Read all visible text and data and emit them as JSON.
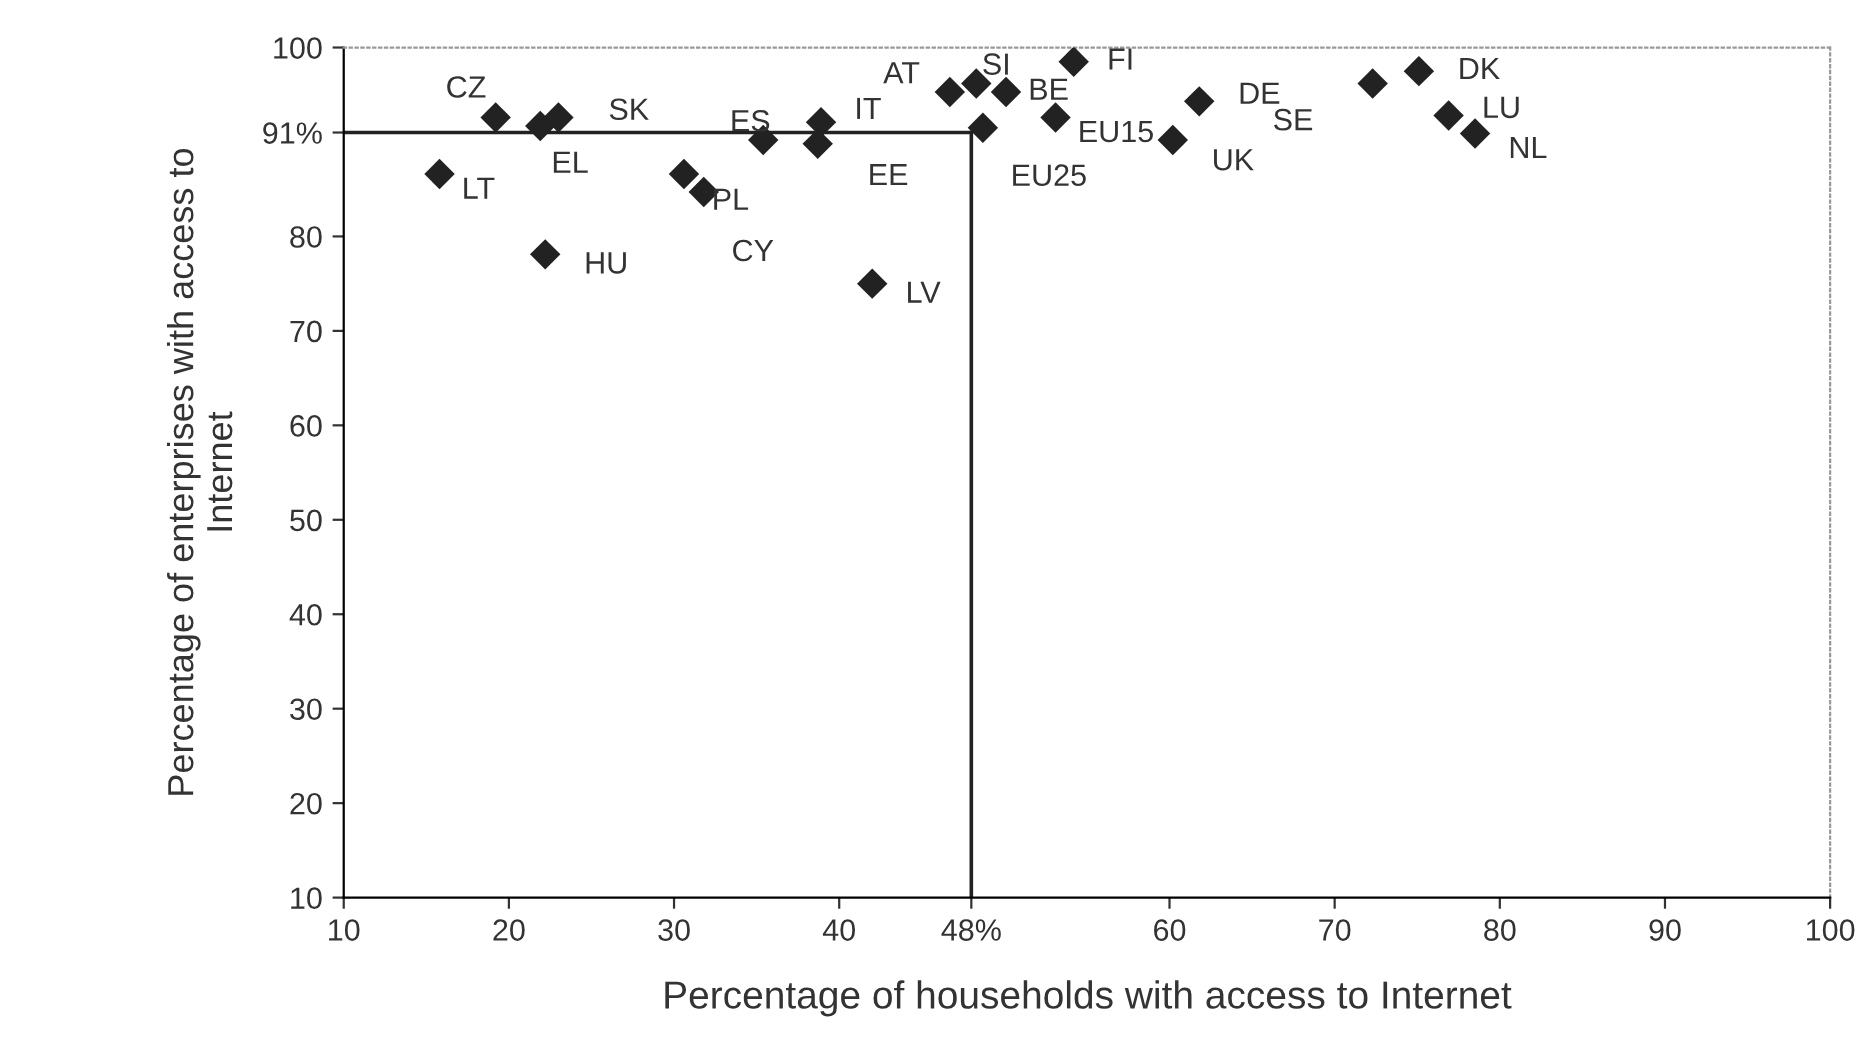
{
  "chart_data": {
    "type": "scatter",
    "xlabel": "Percentage of households with access to Internet",
    "ylabel": "Percentage of enterprises with access to\nInternet",
    "x": [
      19.2,
      21.9,
      23.0,
      15.8,
      22.2,
      30.6,
      31.8,
      35.4,
      38.9,
      38.7,
      42.0,
      46.7,
      48.3,
      50.1,
      54.2,
      53.1,
      48.7,
      61.8,
      60.2,
      72.3,
      75.1,
      76.9,
      78.5
    ],
    "series": [
      {
        "color": "#222222",
        "values": [
          92.6,
          91.7,
          92.6,
          86.6,
          78.1,
          86.6,
          84.7,
          90.2,
          92.1,
          89.8,
          75.0,
          95.3,
          96.2,
          95.3,
          98.5,
          92.6,
          91.5,
          94.3,
          90.2,
          96.2,
          97.5,
          92.8,
          90.9
        ]
      }
    ],
    "annotations": [
      {
        "text": "CZ",
        "x": 19.2,
        "y": 92.6
      },
      {
        "text": "EL",
        "x": 21.9,
        "y": 91.7
      },
      {
        "text": "SK",
        "x": 23.0,
        "y": 92.6
      },
      {
        "text": "LT",
        "x": 15.8,
        "y": 86.6
      },
      {
        "text": "HU",
        "x": 22.2,
        "y": 78.1
      },
      {
        "text": "PL",
        "x": 30.6,
        "y": 86.6
      },
      {
        "text": "CY",
        "x": 31.8,
        "y": 84.7
      },
      {
        "text": "ES",
        "x": 35.4,
        "y": 90.2
      },
      {
        "text": "IT",
        "x": 38.9,
        "y": 92.1
      },
      {
        "text": "EE",
        "x": 38.7,
        "y": 89.8
      },
      {
        "text": "LV",
        "x": 42.0,
        "y": 75.0
      },
      {
        "text": "AT",
        "x": 46.7,
        "y": 95.3
      },
      {
        "text": "SI",
        "x": 48.3,
        "y": 96.2
      },
      {
        "text": "BE",
        "x": 50.1,
        "y": 95.3
      },
      {
        "text": "FI",
        "x": 54.2,
        "y": 98.5
      },
      {
        "text": "EU15",
        "x": 53.1,
        "y": 92.6
      },
      {
        "text": "EU25",
        "x": 48.7,
        "y": 91.5
      },
      {
        "text": "DE",
        "x": 61.8,
        "y": 94.3
      },
      {
        "text": "UK",
        "x": 60.2,
        "y": 90.2
      },
      {
        "text": "SE",
        "x": 72.3,
        "y": 96.2
      },
      {
        "text": "DK",
        "x": 75.1,
        "y": 97.5
      },
      {
        "text": "LU",
        "x": 76.9,
        "y": 92.8
      },
      {
        "text": "NL",
        "x": 78.5,
        "y": 90.9
      }
    ],
    "ref_lines": [
      {
        "axis": "y",
        "value": 91,
        "color": "#222222"
      },
      {
        "axis": "x",
        "value": 48,
        "color": "#222222"
      }
    ],
    "xlim": [
      10,
      100
    ],
    "xticks": [
      10,
      20,
      30,
      40,
      {
        "value": 48,
        "label": "48%"
      },
      60,
      70,
      80,
      90,
      100
    ],
    "ylim": [
      10,
      100
    ],
    "yticks": [
      10,
      20,
      30,
      40,
      50,
      60,
      70,
      80,
      {
        "value": 91,
        "label": "91%"
      },
      100
    ],
    "marker": "diamond",
    "grid": false,
    "legend": false
  }
}
